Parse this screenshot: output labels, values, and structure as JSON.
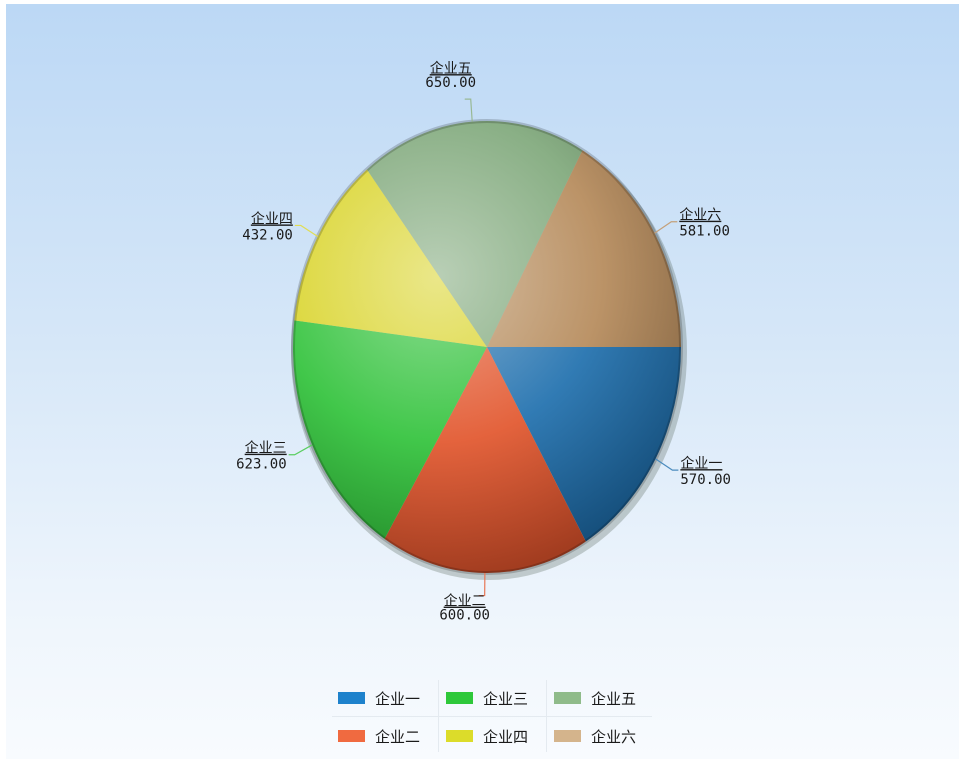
{
  "chart_data": {
    "type": "pie",
    "categories": [
      "企业一",
      "企业二",
      "企业三",
      "企业四",
      "企业五",
      "企业六"
    ],
    "values": [
      570.0,
      600.0,
      623.0,
      432.0,
      650.0,
      581.0
    ],
    "value_labels": [
      "570.00",
      "600.00",
      "623.00",
      "432.00",
      "650.00",
      "581.00"
    ],
    "colors": [
      "#1f6fae",
      "#e2552c",
      "#31c23a",
      "#d9d429",
      "#7fa87a",
      "#b58a5a"
    ],
    "legend_colors": [
      "#1e82cc",
      "#f06a40",
      "#2ec83a",
      "#dcdc2a",
      "#8fbb8a",
      "#d4b48c"
    ],
    "start_angle": "3 o'clock, clockwise",
    "legend_position": "bottom",
    "title": ""
  },
  "legend": {
    "items": [
      {
        "label": "企业一",
        "color": "#1e82cc"
      },
      {
        "label": "企业三",
        "color": "#2ec83a"
      },
      {
        "label": "企业五",
        "color": "#8fbb8a"
      },
      {
        "label": "企业二",
        "color": "#f06a40"
      },
      {
        "label": "企业四",
        "color": "#dcdc2a"
      },
      {
        "label": "企业六",
        "color": "#d4b48c"
      }
    ]
  }
}
